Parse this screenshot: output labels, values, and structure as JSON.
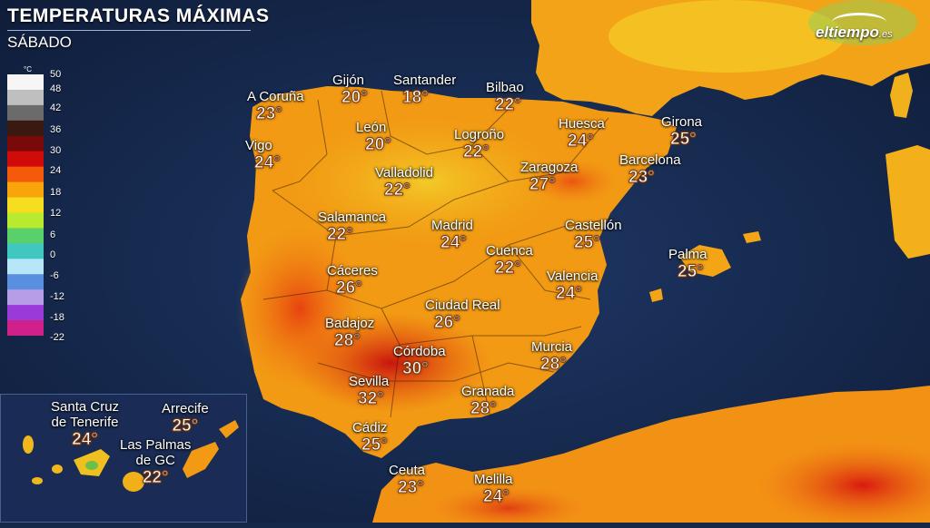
{
  "header": {
    "title": "TEMPERATURAS MÁXIMAS",
    "subtitle": "SÁBADO"
  },
  "brand": {
    "name": "eltiempo",
    "suffix": ".es"
  },
  "legend": {
    "unit": "°C",
    "labels": [
      "50",
      "48",
      "42",
      "36",
      "30",
      "24",
      "18",
      "12",
      "6",
      "0",
      "-6",
      "-12",
      "-18",
      "-22"
    ],
    "colors": [
      "#f6f6f6",
      "#bfbfbf",
      "#6b6b6b",
      "#3a1a10",
      "#7a0a0a",
      "#d10a0a",
      "#f55a0a",
      "#f9a40a",
      "#f7dd20",
      "#b8ea30",
      "#5ad06a",
      "#40c8c0",
      "#b6e6f8",
      "#5a8fe0",
      "#b79ce8",
      "#9a3ad8",
      "#d0208a"
    ]
  },
  "cities": [
    {
      "name": "A Coruña",
      "temp": "23°"
    },
    {
      "name": "Gijón",
      "temp": "20°"
    },
    {
      "name": "Santander",
      "temp": "18°"
    },
    {
      "name": "Bilbao",
      "temp": "22°"
    },
    {
      "name": "León",
      "temp": "20°"
    },
    {
      "name": "Vigo",
      "temp": "24°"
    },
    {
      "name": "Logroño",
      "temp": "22°"
    },
    {
      "name": "Huesca",
      "temp": "24°"
    },
    {
      "name": "Girona",
      "temp": "25°"
    },
    {
      "name": "Valladolid",
      "temp": "22°"
    },
    {
      "name": "Zaragoza",
      "temp": "27°"
    },
    {
      "name": "Barcelona",
      "temp": "23°"
    },
    {
      "name": "Salamanca",
      "temp": "22°"
    },
    {
      "name": "Madrid",
      "temp": "24°"
    },
    {
      "name": "Castellón",
      "temp": "25°"
    },
    {
      "name": "Cuenca",
      "temp": "22°"
    },
    {
      "name": "Palma",
      "temp": "25°"
    },
    {
      "name": "Cáceres",
      "temp": "26°"
    },
    {
      "name": "Valencia",
      "temp": "24°"
    },
    {
      "name": "Ciudad Real",
      "temp": "26°"
    },
    {
      "name": "Badajoz",
      "temp": "28°"
    },
    {
      "name": "Córdoba",
      "temp": "30°"
    },
    {
      "name": "Murcia",
      "temp": "28°"
    },
    {
      "name": "Sevilla",
      "temp": "32°"
    },
    {
      "name": "Granada",
      "temp": "28°"
    },
    {
      "name": "Cádiz",
      "temp": "25°"
    },
    {
      "name": "Ceuta",
      "temp": "23°"
    },
    {
      "name": "Melilla",
      "temp": "24°"
    }
  ],
  "canarias": [
    {
      "name_line1": "Santa Cruz",
      "name_line2": "de Tenerife",
      "temp": "24°"
    },
    {
      "name_line1": "Arrecife",
      "name_line2": "",
      "temp": "25°"
    },
    {
      "name_line1": "Las Palmas",
      "name_line2": "de GC",
      "temp": "22°"
    }
  ]
}
